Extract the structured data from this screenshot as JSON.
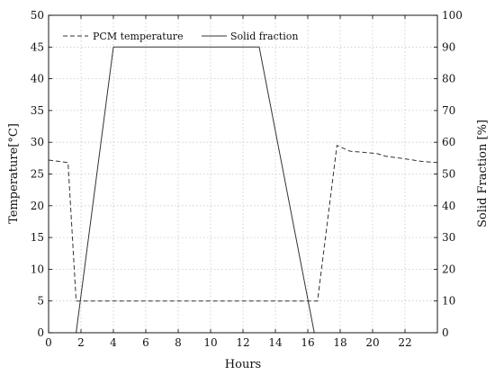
{
  "chart_data": {
    "type": "line",
    "xlabel": "Hours",
    "ylabel_left": "Temperature[°C]",
    "ylabel_right": "Solid Fraction [%]",
    "xlim": [
      0,
      24
    ],
    "ylim_left": [
      0,
      50
    ],
    "ylim_right": [
      0,
      100
    ],
    "x_ticks": [
      0,
      2,
      4,
      6,
      8,
      10,
      12,
      14,
      16,
      18,
      20,
      22
    ],
    "y_ticks_left": [
      0,
      5,
      10,
      15,
      20,
      25,
      30,
      35,
      40,
      45,
      50
    ],
    "y_ticks_right": [
      0,
      10,
      20,
      30,
      40,
      50,
      60,
      70,
      80,
      90,
      100
    ],
    "grid": true,
    "legend_placement": "top-left",
    "series": [
      {
        "name": "PCM temperature",
        "axis": "left",
        "style": "dashed",
        "color": "#333333",
        "x": [
          0,
          1.2,
          1.7,
          2.0,
          16.6,
          17.8,
          18.6,
          19.5,
          20.3,
          20.8,
          22.0,
          23.0,
          24.0
        ],
        "y": [
          27.2,
          26.8,
          5.0,
          5.0,
          5.0,
          29.5,
          28.6,
          28.4,
          28.2,
          27.8,
          27.4,
          27.0,
          26.8
        ]
      },
      {
        "name": "Solid fraction",
        "axis": "right",
        "style": "solid",
        "color": "#333333",
        "x": [
          1.7,
          4.0,
          13.0,
          16.4
        ],
        "y": [
          0,
          90,
          90,
          0
        ]
      }
    ]
  }
}
